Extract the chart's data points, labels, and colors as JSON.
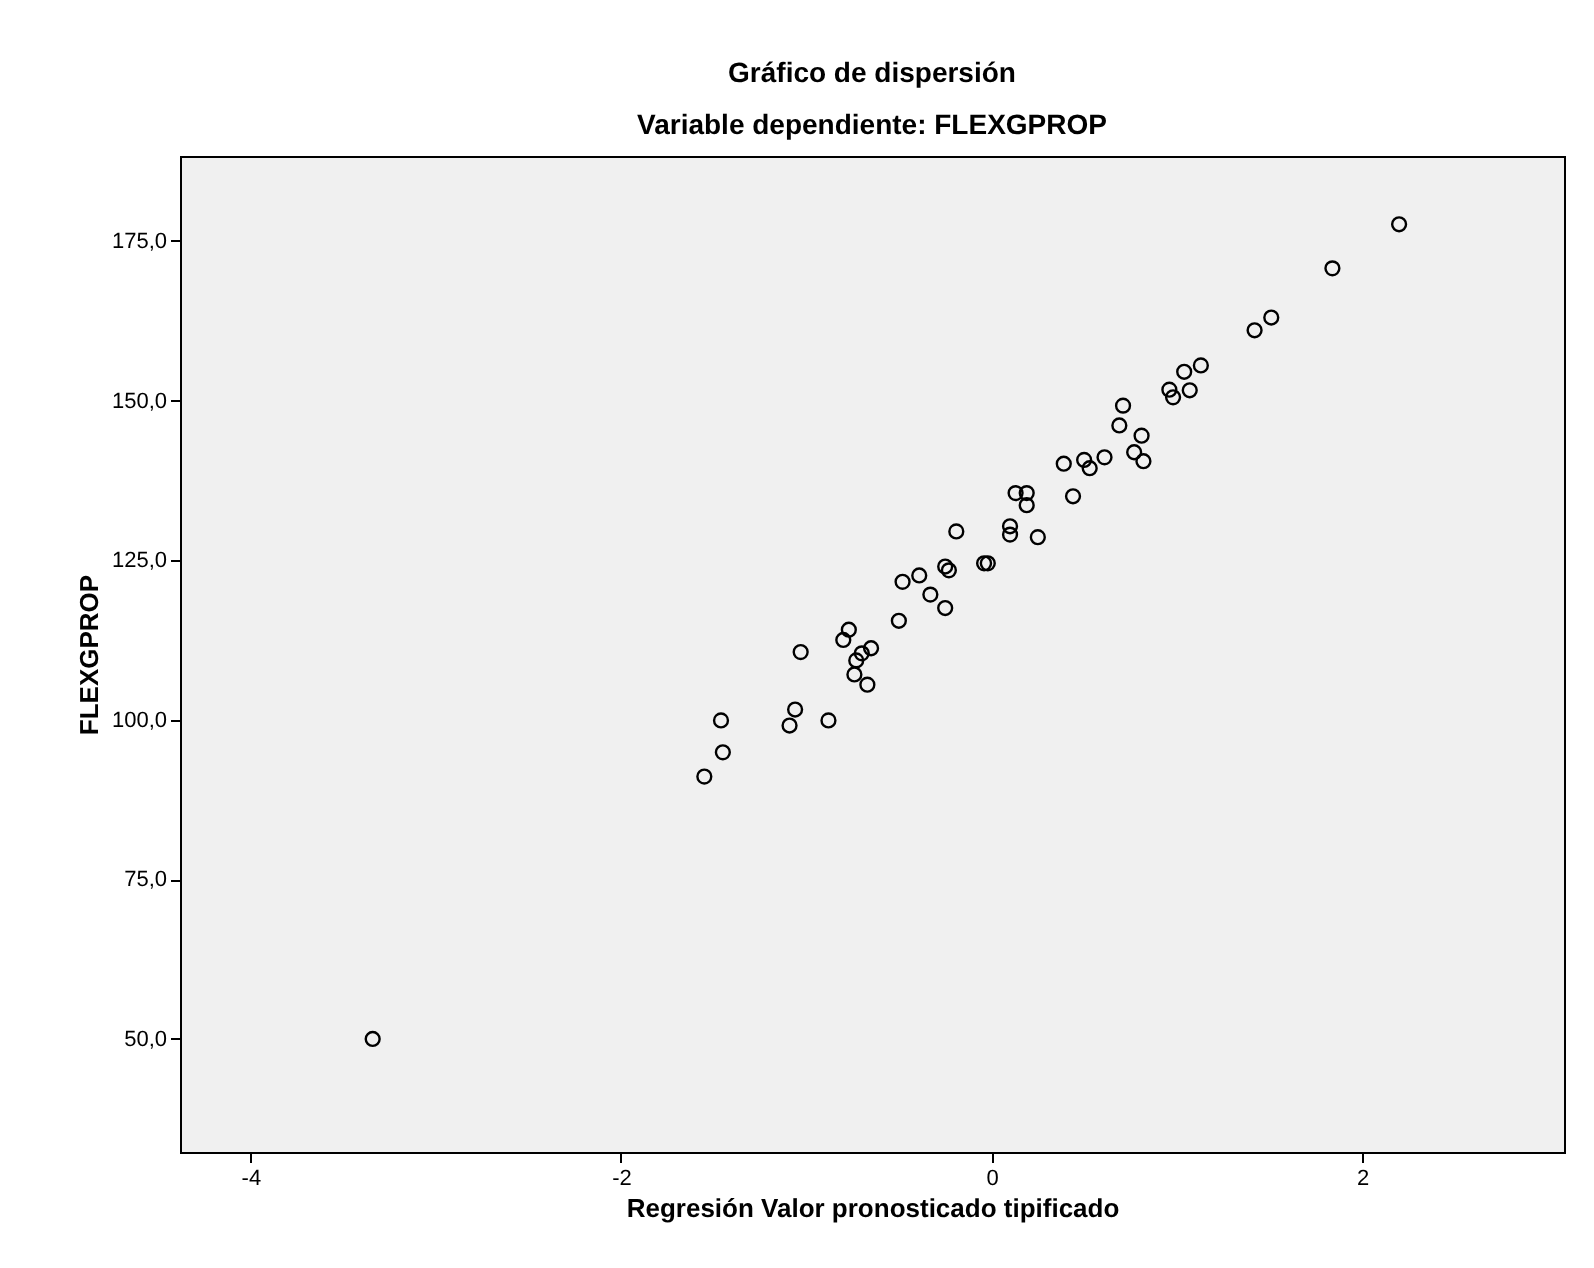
{
  "chart_data": {
    "type": "scatter",
    "title": "Gráfico de dispersión",
    "subtitle": "Variable dependiente: FLEXGPROP",
    "xlabel": "Regresión Valor pronosticado tipificado",
    "ylabel": "FLEXGPROP",
    "marker": "circle",
    "series": [
      {
        "color": "#000000",
        "x": [
          -3.34,
          -1.55,
          -1.45,
          -1.46,
          -1.09,
          -1.06,
          -0.88,
          -1.03,
          -0.77,
          -0.8,
          -0.65,
          -0.7,
          -0.73,
          -0.74,
          -0.67,
          -0.5,
          -0.48,
          -0.39,
          -0.33,
          -0.25,
          -0.25,
          -0.23,
          -0.19,
          -0.04,
          -0.02,
          0.1,
          0.1,
          0.25,
          0.13,
          0.19,
          0.19,
          0.44,
          0.39,
          0.5,
          0.53,
          0.61,
          0.69,
          0.71,
          0.81,
          0.77,
          0.82,
          0.96,
          0.98,
          1.07,
          1.04,
          1.13,
          1.42,
          1.51,
          1.84,
          2.2
        ],
        "values": [
          50,
          91.1,
          94.9,
          99.9,
          99.1,
          101.6,
          99.9,
          110.6,
          114.1,
          112.5,
          111.2,
          110.4,
          109.3,
          107.1,
          105.5,
          115.5,
          121.6,
          122.6,
          119.6,
          117.5,
          124,
          123.4,
          129.5,
          124.5,
          124.5,
          130.3,
          129,
          128.6,
          135.5,
          135.5,
          133.6,
          135,
          140.1,
          140.7,
          139.4,
          141.1,
          146.1,
          149.2,
          144.5,
          141.9,
          140.5,
          151.7,
          150.5,
          151.6,
          154.5,
          155.5,
          161,
          163,
          170.7,
          177.6
        ]
      }
    ],
    "xlim": [
      -4.38,
      3.09
    ],
    "xticks": [
      -4,
      -2,
      0,
      2
    ],
    "ylim": [
      32.3,
      188.3
    ],
    "yticks": [
      {
        "value": 50,
        "label": "50,0"
      },
      {
        "value": 75,
        "label": "75,0"
      },
      {
        "value": 100,
        "label": "100,0"
      },
      {
        "value": 125,
        "label": "125,0"
      },
      {
        "value": 150,
        "label": "150,0"
      },
      {
        "value": 175,
        "label": "175,0"
      }
    ]
  }
}
